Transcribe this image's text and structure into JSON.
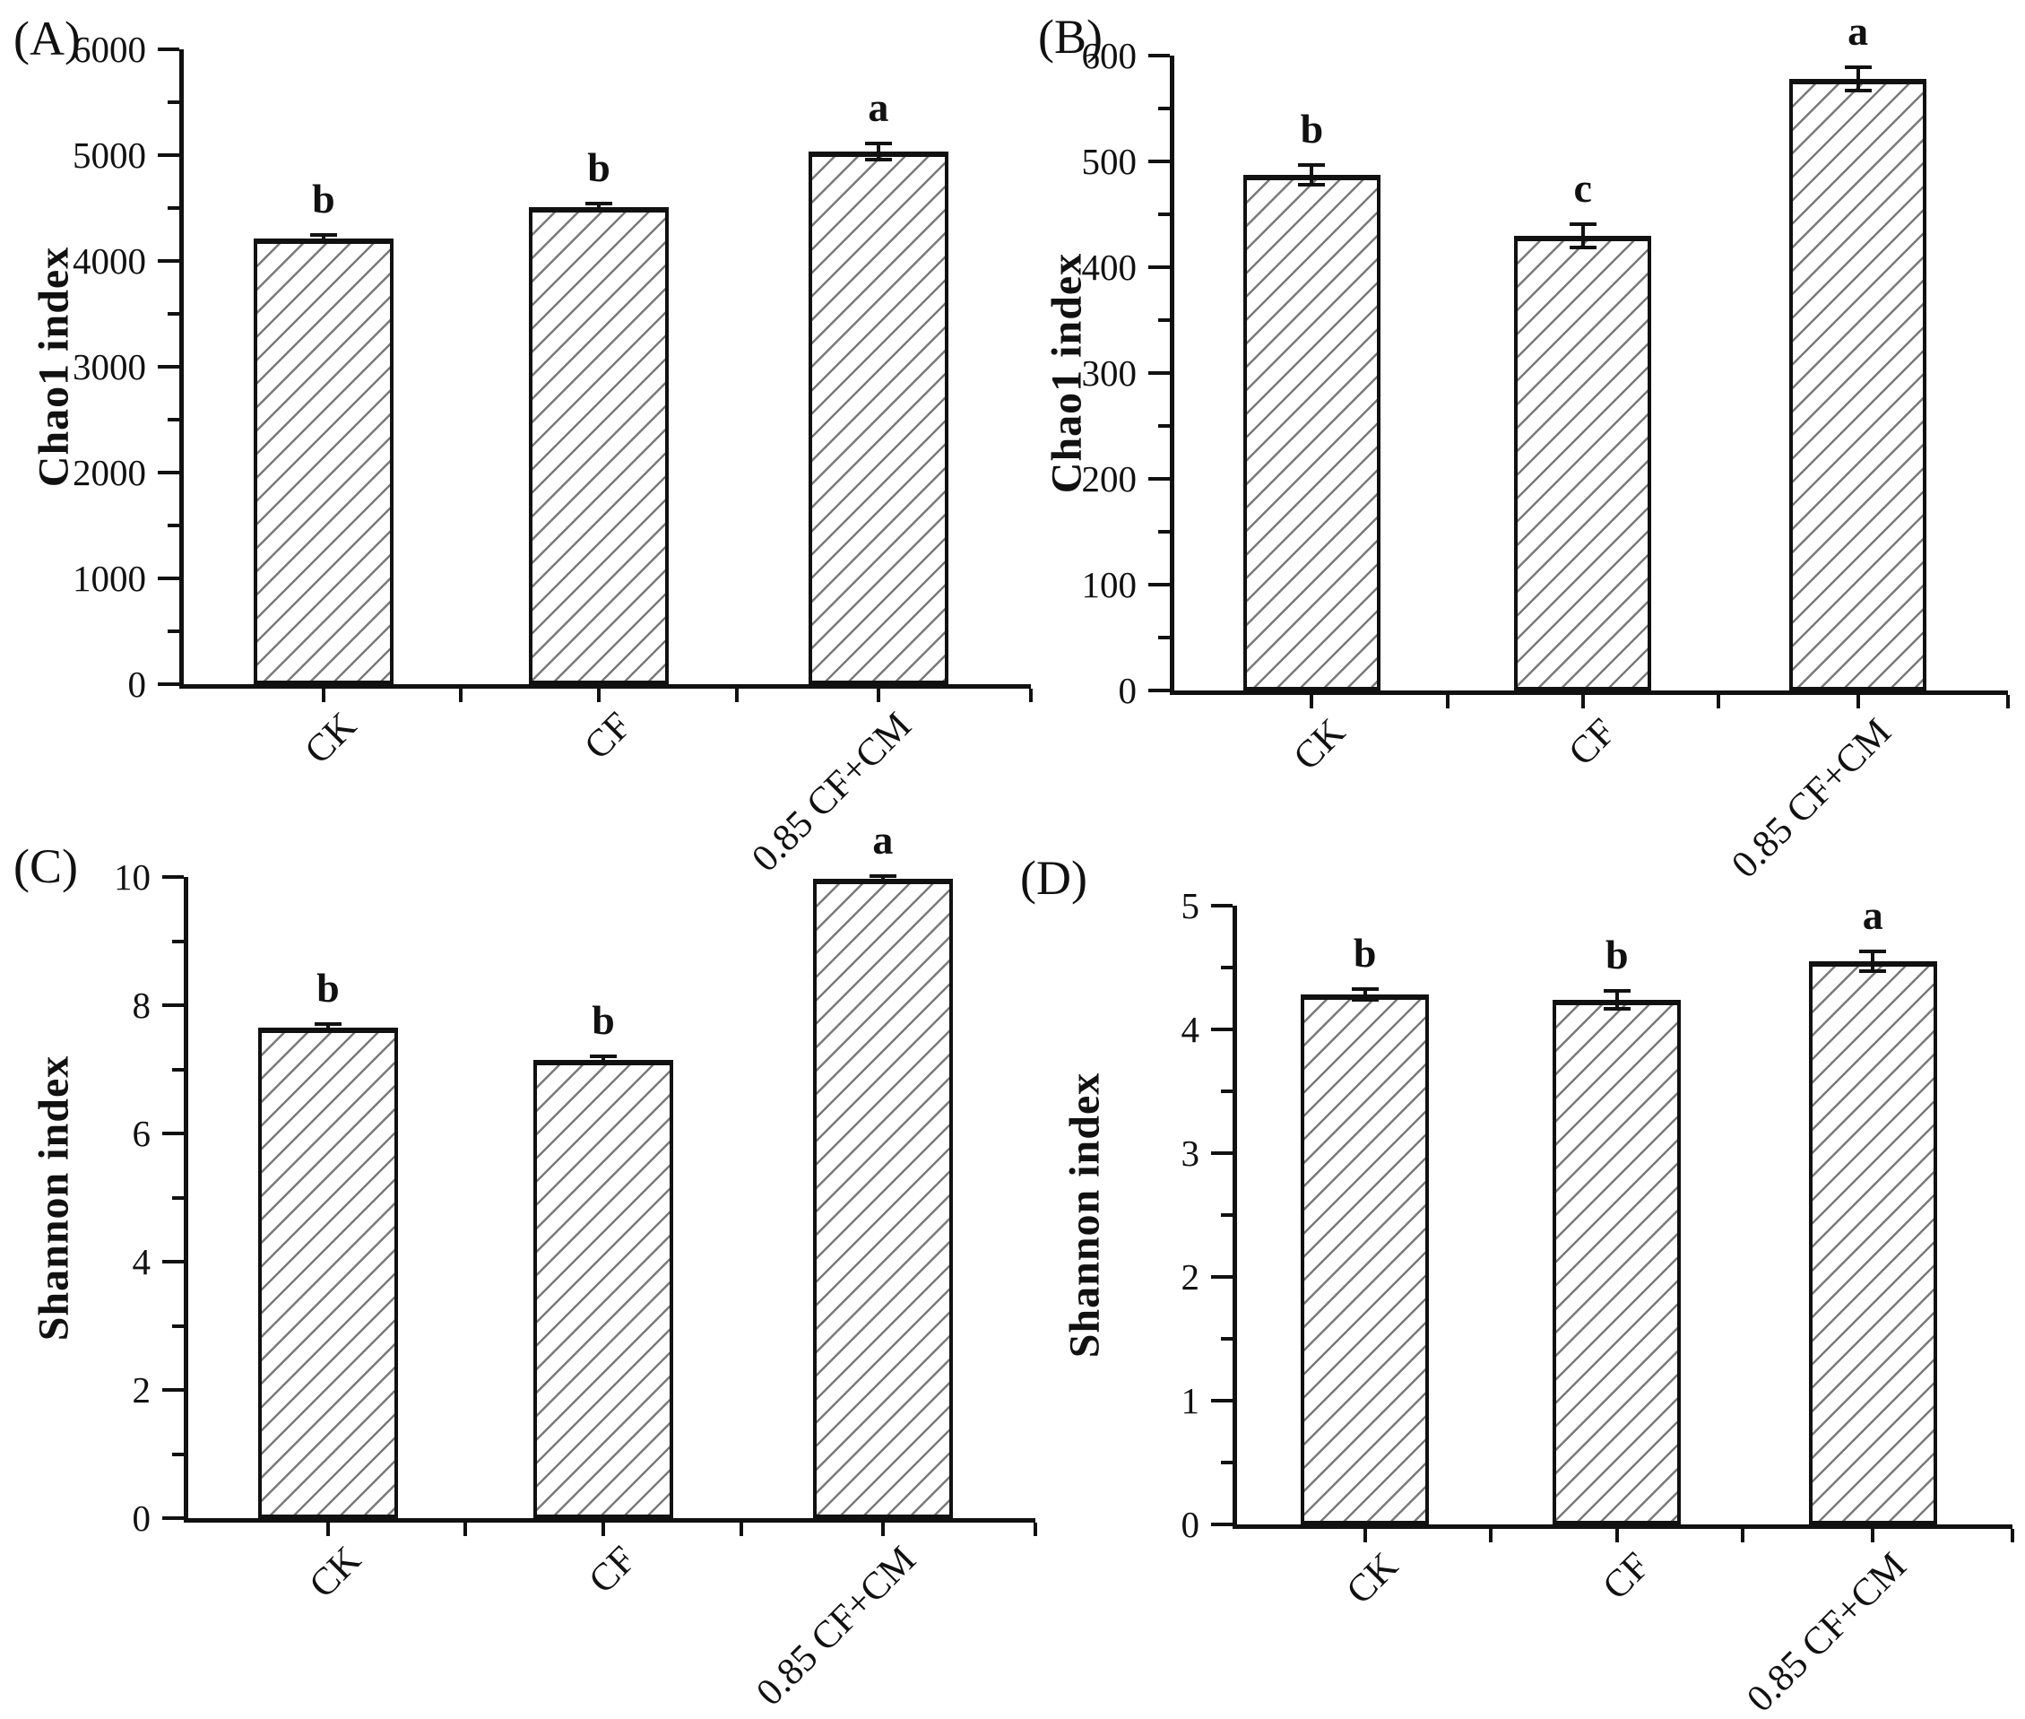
{
  "figure": {
    "background": "#ffffff",
    "ink_color": "#111111",
    "hatch_color": "#7a7a7a",
    "description": "Four-panel bar figure of alpha-diversity indices with error bars and significance letters"
  },
  "chart_data": [
    {
      "type": "bar",
      "panel_label": "(A)",
      "ylabel": "Chao1 index",
      "categories": [
        "CK",
        "CF",
        "0.85 CF+CM"
      ],
      "values": [
        4210,
        4510,
        5030
      ],
      "errors": [
        30,
        35,
        75
      ],
      "sig_letters": [
        "b",
        "b",
        "a"
      ],
      "ylim": [
        0,
        6000
      ],
      "ytick_labels": [
        "0",
        "1000",
        "2000",
        "3000",
        "4000",
        "5000",
        "6000"
      ],
      "minor_ticks_per_interval": 1,
      "grid": false,
      "legend": "none"
    },
    {
      "type": "bar",
      "panel_label": "(B)",
      "ylabel": "Chao1 index",
      "categories": [
        "CK",
        "CF",
        "0.85 CF+CM"
      ],
      "values": [
        487,
        430,
        578
      ],
      "errors": [
        9,
        11,
        11
      ],
      "sig_letters": [
        "b",
        "c",
        "a"
      ],
      "ylim": [
        0,
        600
      ],
      "ytick_labels": [
        "0",
        "100",
        "200",
        "300",
        "400",
        "500",
        "600"
      ],
      "minor_ticks_per_interval": 1,
      "grid": false,
      "legend": "none"
    },
    {
      "type": "bar",
      "panel_label": "(C)",
      "ylabel": "Shannon index",
      "categories": [
        "CK",
        "CF",
        "0.85 CF+CM"
      ],
      "values": [
        7.65,
        7.15,
        9.97
      ],
      "errors": [
        0.06,
        0.06,
        0.03
      ],
      "sig_letters": [
        "b",
        "b",
        "a"
      ],
      "ylim": [
        0,
        10
      ],
      "ytick_labels": [
        "0",
        "2",
        "4",
        "6",
        "8",
        "10"
      ],
      "minor_ticks_per_interval": 1,
      "grid": false,
      "legend": "none"
    },
    {
      "type": "bar",
      "panel_label": "(D)",
      "ylabel": "Shannon index",
      "categories": [
        "CK",
        "CF",
        "0.85 CF+CM"
      ],
      "values": [
        4.28,
        4.24,
        4.55
      ],
      "errors": [
        0.04,
        0.07,
        0.08
      ],
      "sig_letters": [
        "b",
        "b",
        "a"
      ],
      "ylim": [
        0,
        5
      ],
      "ytick_labels": [
        "0",
        "1",
        "2",
        "3",
        "4",
        "5"
      ],
      "minor_ticks_per_interval": 1,
      "grid": false,
      "legend": "none"
    }
  ]
}
